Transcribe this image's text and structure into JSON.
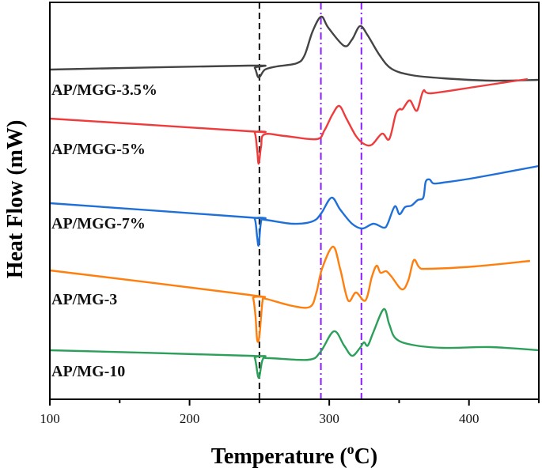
{
  "chart_data": {
    "type": "line",
    "title": "",
    "xlabel": "Temperature (",
    "xlabel_sup": "o",
    "xlabel_unit": "C)",
    "ylabel": "Heat Flow (mW)",
    "xlim": [
      100,
      450
    ],
    "ylim": [
      0,
      100.4
    ],
    "x_ticks": [
      100,
      200,
      300,
      400
    ],
    "x_tick_labels": [
      "100",
      "200",
      "300",
      "400"
    ],
    "x_minor_ticks": [
      150,
      250,
      350,
      450
    ],
    "y_ticks": [],
    "grid": false,
    "legend": "inline labels at left",
    "reference_lines": [
      {
        "x": 250,
        "style": "dashed",
        "color": "#111111"
      },
      {
        "x": 294,
        "style": "dash-dot",
        "color": "#8a1cff"
      },
      {
        "x": 323,
        "style": "dash-dot",
        "color": "#8a1cff"
      }
    ],
    "series": [
      {
        "name": "AP/MGG-3.5%",
        "color": "#444444",
        "points": [
          [
            100,
            83.4
          ],
          [
            242.7,
            84.4
          ],
          [
            246.7,
            83.8
          ],
          [
            249.5,
            81.4
          ],
          [
            254,
            83.4
          ],
          [
            262.5,
            84.2
          ],
          [
            276.7,
            85
          ],
          [
            282.3,
            87
          ],
          [
            288,
            93
          ],
          [
            294.2,
            96.8
          ],
          [
            299.3,
            94
          ],
          [
            310.6,
            89.4
          ],
          [
            316.3,
            91
          ],
          [
            322,
            94.4
          ],
          [
            327.6,
            92
          ],
          [
            336.1,
            87
          ],
          [
            344.6,
            83.6
          ],
          [
            358.8,
            82
          ],
          [
            381.4,
            81.2
          ],
          [
            415.4,
            80.6
          ],
          [
            449.9,
            80.8
          ]
        ]
      },
      {
        "name": "AP/MGG-5%",
        "color": "#ef3b3b",
        "points": [
          [
            100,
            71
          ],
          [
            242.7,
            67.8
          ],
          [
            246.7,
            67.4
          ],
          [
            248.4,
            63
          ],
          [
            249.5,
            59.6
          ],
          [
            251.2,
            64
          ],
          [
            253.5,
            67
          ],
          [
            268.2,
            66.6
          ],
          [
            290.8,
            65.8
          ],
          [
            296.5,
            68
          ],
          [
            302.2,
            72
          ],
          [
            307.2,
            74.2
          ],
          [
            312.3,
            71
          ],
          [
            319.1,
            66.6
          ],
          [
            324.8,
            64.6
          ],
          [
            330.5,
            64.4
          ],
          [
            337.8,
            67.2
          ],
          [
            342.9,
            65.8
          ],
          [
            347.5,
            72
          ],
          [
            350.3,
            73.4
          ],
          [
            352.5,
            73.4
          ],
          [
            357.6,
            75.6
          ],
          [
            362.7,
            73
          ],
          [
            367.3,
            78
          ],
          [
            372.9,
            77.4
          ],
          [
            404.1,
            79
          ],
          [
            426.7,
            80.2
          ],
          [
            442,
            81
          ]
        ]
      },
      {
        "name": "AP/MGG-7%",
        "color": "#1f6fd8",
        "points": [
          [
            100,
            49.6
          ],
          [
            242.7,
            46
          ],
          [
            246.7,
            45.6
          ],
          [
            248.4,
            41
          ],
          [
            249.5,
            39
          ],
          [
            251.2,
            45
          ],
          [
            254,
            45.4
          ],
          [
            273.8,
            44.4
          ],
          [
            288,
            45
          ],
          [
            294.2,
            47
          ],
          [
            301.6,
            51
          ],
          [
            307.8,
            48
          ],
          [
            316.3,
            44.4
          ],
          [
            323.7,
            43.2
          ],
          [
            331.6,
            44.4
          ],
          [
            339,
            43.4
          ],
          [
            341.8,
            44.4
          ],
          [
            346.9,
            48.8
          ],
          [
            350.3,
            46.8
          ],
          [
            354.2,
            48.6
          ],
          [
            358.8,
            49
          ],
          [
            363.3,
            50.4
          ],
          [
            367.3,
            51
          ],
          [
            369,
            55
          ],
          [
            371.8,
            55.6
          ],
          [
            374.6,
            54.6
          ],
          [
            381.4,
            54.8
          ],
          [
            404.1,
            56
          ],
          [
            449.9,
            59
          ]
        ]
      },
      {
        "name": "AP/MG-3",
        "color": "#ff7f0e",
        "points": [
          [
            100,
            32.6
          ],
          [
            242.7,
            26.4
          ],
          [
            245.5,
            25.6
          ],
          [
            247.2,
            21
          ],
          [
            248.4,
            15
          ],
          [
            250,
            16
          ],
          [
            252.3,
            25
          ],
          [
            254.6,
            25.4
          ],
          [
            273.8,
            23.6
          ],
          [
            286.3,
            23.4
          ],
          [
            290.8,
            27
          ],
          [
            294.8,
            33
          ],
          [
            302.7,
            38.6
          ],
          [
            307.8,
            33
          ],
          [
            313.5,
            25
          ],
          [
            319.1,
            27
          ],
          [
            325.9,
            25
          ],
          [
            330.5,
            31
          ],
          [
            333.9,
            33.8
          ],
          [
            336.7,
            32
          ],
          [
            340.7,
            32.4
          ],
          [
            344.6,
            31
          ],
          [
            352,
            27.8
          ],
          [
            356.5,
            30
          ],
          [
            360.5,
            35.2
          ],
          [
            364.4,
            33.4
          ],
          [
            370.1,
            33
          ],
          [
            404.1,
            33.6
          ],
          [
            443.7,
            35
          ]
        ]
      },
      {
        "name": "AP/MG-10",
        "color": "#2ca05a",
        "points": [
          [
            100,
            12.4
          ],
          [
            242.7,
            11
          ],
          [
            246.7,
            10.4
          ],
          [
            249.5,
            5.4
          ],
          [
            252.3,
            10
          ],
          [
            256.9,
            10.4
          ],
          [
            285.2,
            10
          ],
          [
            293.7,
            12
          ],
          [
            303.3,
            17.2
          ],
          [
            310.6,
            13.6
          ],
          [
            316.3,
            11
          ],
          [
            322,
            13
          ],
          [
            324.8,
            14.4
          ],
          [
            327.6,
            13.6
          ],
          [
            331.6,
            17
          ],
          [
            339,
            22.8
          ],
          [
            342.9,
            19
          ],
          [
            347.5,
            15.4
          ],
          [
            358.8,
            13.8
          ],
          [
            381.4,
            13
          ],
          [
            415.4,
            13.2
          ],
          [
            449.9,
            12.4
          ]
        ]
      }
    ]
  }
}
